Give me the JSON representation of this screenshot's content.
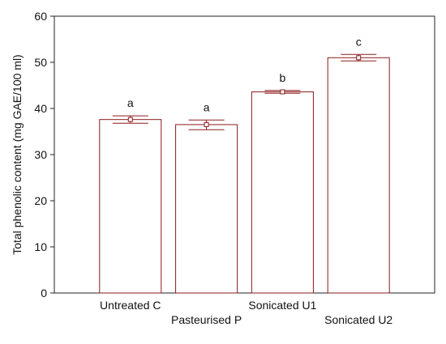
{
  "chart_data": {
    "type": "bar",
    "title": "",
    "xlabel": "",
    "ylabel": "Total phenolic content (mg GAE/100 ml)",
    "categories": [
      "Untreated C",
      "Pasteurised P",
      "Sonicated U1",
      "Sonicated U2"
    ],
    "values": [
      37.6,
      36.5,
      43.6,
      51.0
    ],
    "error_low": [
      36.8,
      35.4,
      43.3,
      50.3
    ],
    "error_high": [
      38.4,
      37.5,
      43.9,
      51.7
    ],
    "significance_letters": [
      "a",
      "a",
      "b",
      "c"
    ],
    "ylim": [
      0,
      60
    ],
    "yticks": [
      0,
      10,
      20,
      30,
      40,
      50,
      60
    ],
    "grid": false,
    "legend": "none",
    "bar_fill": "#ffffff",
    "bar_stroke": "#8b1a1a"
  }
}
